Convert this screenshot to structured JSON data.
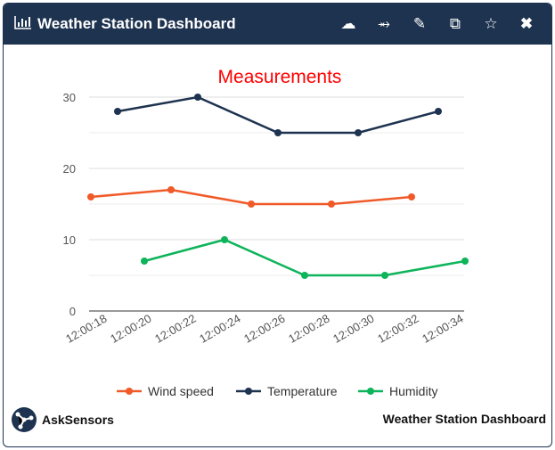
{
  "header": {
    "title": "Weather Station Dashboard",
    "icons": [
      "bar-chart-icon",
      "cloud-download-icon",
      "share-icon",
      "edit-icon",
      "copy-icon",
      "star-icon",
      "close-icon"
    ]
  },
  "chart_data": {
    "type": "line",
    "title": "Measurements",
    "title_color": "#ff0000",
    "xlabel": "",
    "ylabel": "",
    "ylim": [
      0,
      30
    ],
    "yticks": [
      "0",
      "10",
      "20",
      "30"
    ],
    "xticks": [
      "12:00:18",
      "12:00:20",
      "12:00:22",
      "12:00:24",
      "12:00:26",
      "12:00:28",
      "12:00:30",
      "12:00:32",
      "12:00:34"
    ],
    "grid": true,
    "legend": "bottom",
    "series": [
      {
        "name": "Wind speed",
        "color": "#f05a28",
        "x": [
          "12:00:17.4",
          "12:00:21.0",
          "12:00:24.6",
          "12:00:28.2",
          "12:00:31.8"
        ],
        "values": [
          16,
          17,
          15,
          15,
          16
        ]
      },
      {
        "name": "Temperature",
        "color": "#1e3350",
        "x": [
          "12:00:18.6",
          "12:00:22.2",
          "12:00:25.8",
          "12:00:29.4",
          "12:00:33.0"
        ],
        "values": [
          28,
          30,
          25,
          25,
          28
        ]
      },
      {
        "name": "Humidity",
        "color": "#0db45a",
        "x": [
          "12:00:19.8",
          "12:00:23.4",
          "12:00:27.0",
          "12:00:30.6",
          "12:00:34.2"
        ],
        "values": [
          7,
          10,
          5,
          5,
          7
        ]
      }
    ]
  },
  "footer": {
    "brand": "AskSensors",
    "title": "Weather Station Dashboard"
  }
}
